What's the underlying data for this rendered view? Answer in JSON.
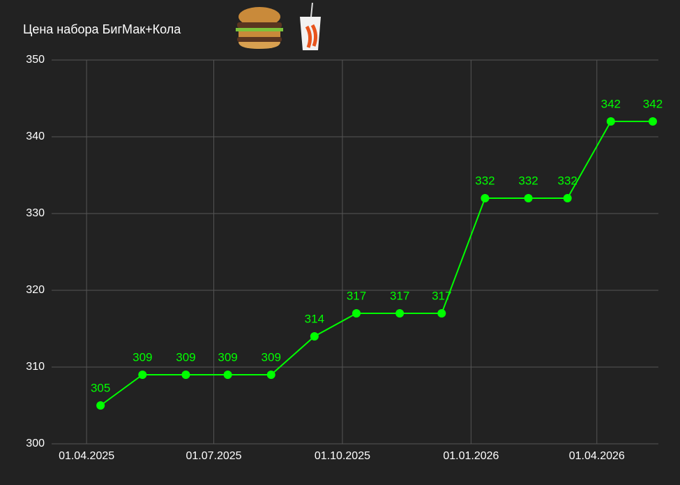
{
  "chart_data": {
    "type": "line",
    "title": "Цена набора БигМак+Кола",
    "x": [
      "2025-04-11",
      "2025-05-11",
      "2025-06-11",
      "2025-07-11",
      "2025-08-11",
      "2025-09-11",
      "2025-10-11",
      "2025-11-11",
      "2025-12-11",
      "2026-01-11",
      "2026-02-11",
      "2026-03-11",
      "2026-04-11",
      "2026-05-11"
    ],
    "series": [
      {
        "color": "#00ff00",
        "values": [
          305,
          309,
          309,
          309,
          309,
          314,
          317,
          317,
          317,
          332,
          332,
          332,
          342,
          342
        ]
      }
    ],
    "xlim": [
      "2025-03-07",
      "2026-05-15"
    ],
    "xticks": [
      {
        "value": "2025-04-01",
        "label": "01.04.2025"
      },
      {
        "value": "2025-07-01",
        "label": "01.07.2025"
      },
      {
        "value": "2025-10-01",
        "label": "01.10.2025"
      },
      {
        "value": "2026-01-01",
        "label": "01.01.2026"
      },
      {
        "value": "2026-04-01",
        "label": "01.04.2026"
      }
    ],
    "ylim": [
      300,
      350
    ],
    "yticks": [
      300,
      310,
      320,
      330,
      340,
      350
    ],
    "grid": true
  }
}
